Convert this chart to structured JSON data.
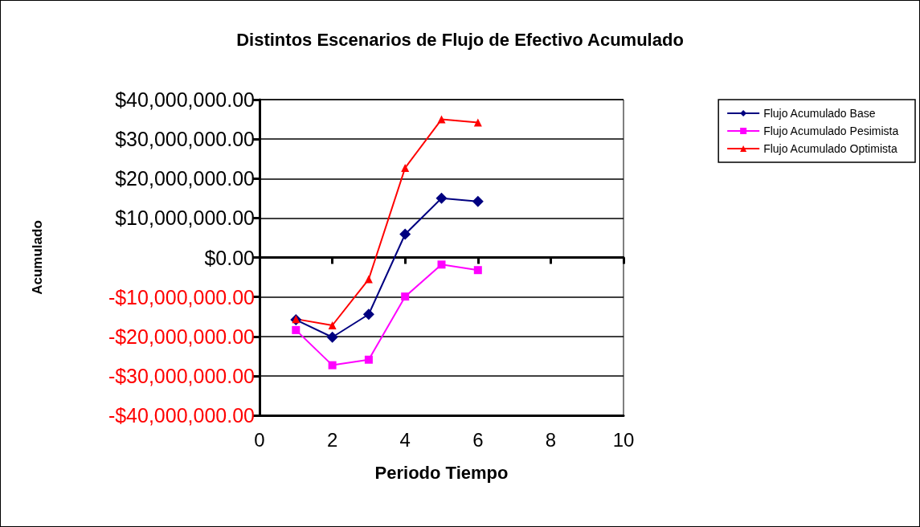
{
  "chart_data": {
    "type": "line",
    "title": "Distintos Escenarios de Flujo de Efectivo Acumulado",
    "xlabel": "Periodo Tiempo",
    "ylabel": "Acumulado",
    "xlim": [
      0,
      10
    ],
    "xticks": [
      0,
      2,
      4,
      6,
      8,
      10
    ],
    "ylim": [
      -40000000,
      40000000
    ],
    "yticks": [
      {
        "value": -40000000,
        "label": "-$40,000,000.00"
      },
      {
        "value": -30000000,
        "label": "-$30,000,000.00"
      },
      {
        "value": -20000000,
        "label": "-$20,000,000.00"
      },
      {
        "value": -10000000,
        "label": "-$10,000,000.00"
      },
      {
        "value": 0,
        "label": "$0.00"
      },
      {
        "value": 10000000,
        "label": "$10,000,000.00"
      },
      {
        "value": 20000000,
        "label": "$20,000,000.00"
      },
      {
        "value": 30000000,
        "label": "$30,000,000.00"
      },
      {
        "value": 40000000,
        "label": "$40,000,000.00"
      }
    ],
    "x": [
      1,
      2,
      3,
      4,
      5,
      6
    ],
    "series": [
      {
        "name": "Flujo Acumulado Base",
        "color": "#000080",
        "marker": "diamond",
        "values": [
          -15800000,
          -20200000,
          -14400000,
          5900000,
          15000000,
          14200000
        ]
      },
      {
        "name": "Flujo Acumulado Pesimista",
        "color": "#ff00ff",
        "marker": "square",
        "values": [
          -18400000,
          -27300000,
          -25900000,
          -9900000,
          -1800000,
          -3200000
        ]
      },
      {
        "name": "Flujo Acumulado Optimista",
        "color": "#ff0000",
        "marker": "triangle",
        "values": [
          -15600000,
          -17200000,
          -5500000,
          22700000,
          35000000,
          34200000
        ]
      }
    ],
    "grid": "y",
    "legend": "top right",
    "line_style": "solid"
  }
}
